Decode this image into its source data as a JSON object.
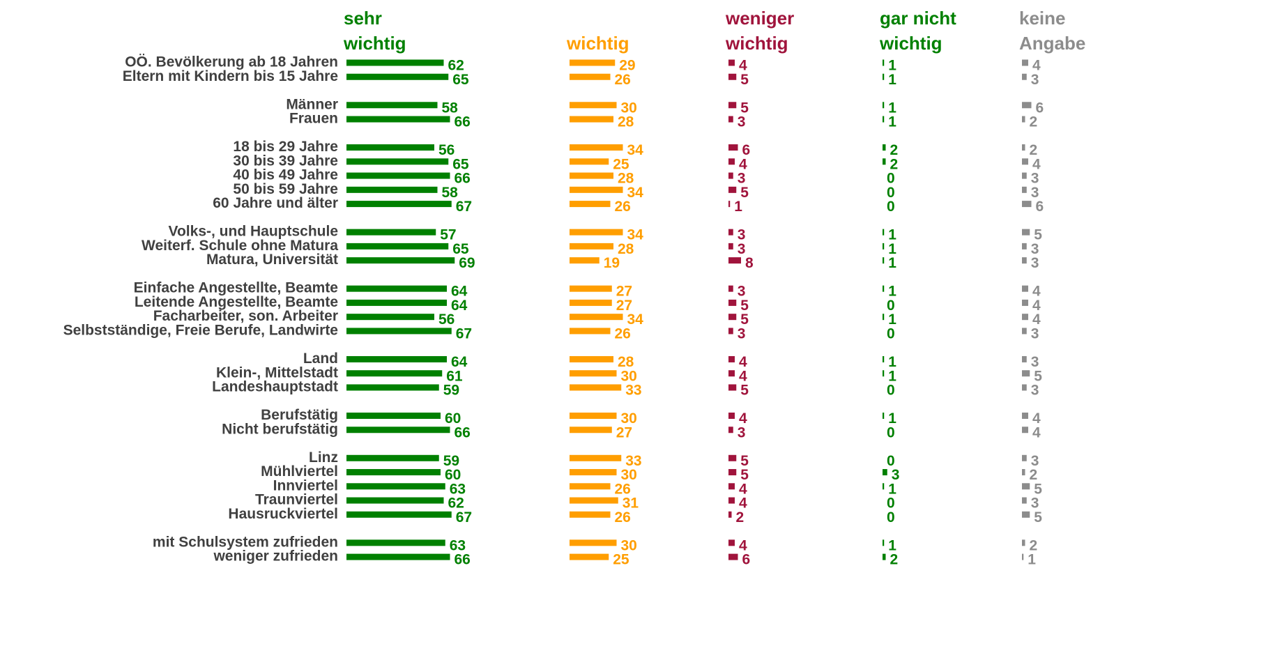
{
  "chart_data": {
    "type": "bar",
    "categories": [
      "OÖ. Bevölkerung ab 18 Jahren",
      "Eltern mit Kindern bis 15 Jahre",
      "Männer",
      "Frauen",
      "18 bis 29 Jahre",
      "30 bis 39 Jahre",
      "40 bis 49 Jahre",
      "50 bis 59 Jahre",
      "60 Jahre und älter",
      "Volks-, und Hauptschule",
      "Weiterf. Schule ohne Matura",
      "Matura, Universität",
      "Einfache Angestellte, Beamte",
      "Leitende  Angestellte, Beamte",
      "Facharbeiter, son. Arbeiter",
      "Selbstständige, Freie Berufe, Landwirte",
      "Land",
      "Klein-, Mittelstadt",
      "Landeshauptstadt",
      "Berufstätig",
      "Nicht berufstätig",
      "Linz",
      "Mühlviertel",
      "Innviertel",
      "Traunviertel",
      "Hausruckviertel",
      "mit Schulsystem zufrieden",
      "weniger zufrieden"
    ],
    "series": [
      {
        "name": "sehr wichtig",
        "color": "#008000",
        "values": [
          62,
          65,
          58,
          66,
          56,
          65,
          66,
          58,
          67,
          57,
          65,
          69,
          64,
          64,
          56,
          67,
          64,
          61,
          59,
          60,
          66,
          59,
          60,
          63,
          62,
          67,
          63,
          66
        ]
      },
      {
        "name": "wichtig",
        "color": "#ff9e00",
        "values": [
          29,
          26,
          30,
          28,
          34,
          25,
          28,
          34,
          26,
          34,
          28,
          19,
          27,
          27,
          34,
          26,
          28,
          30,
          33,
          30,
          27,
          33,
          30,
          26,
          31,
          26,
          30,
          25
        ]
      },
      {
        "name": "weniger wichtig",
        "color": "#a0143c",
        "values": [
          4,
          5,
          5,
          3,
          6,
          4,
          3,
          5,
          1,
          3,
          3,
          8,
          3,
          5,
          5,
          3,
          4,
          4,
          5,
          4,
          3,
          5,
          5,
          4,
          4,
          2,
          4,
          6
        ]
      },
      {
        "name": "gar nicht wichtig",
        "color": "#008000",
        "values": [
          1,
          1,
          1,
          1,
          2,
          2,
          0,
          0,
          0,
          1,
          1,
          1,
          1,
          0,
          1,
          0,
          1,
          1,
          0,
          1,
          0,
          0,
          3,
          1,
          0,
          0,
          1,
          2
        ]
      },
      {
        "name": "keine Angabe",
        "color": "#8c8c8c",
        "values": [
          4,
          3,
          6,
          2,
          2,
          4,
          3,
          3,
          6,
          5,
          3,
          3,
          4,
          4,
          4,
          3,
          3,
          5,
          3,
          4,
          4,
          3,
          2,
          5,
          3,
          5,
          2,
          1
        ]
      }
    ]
  }
}
